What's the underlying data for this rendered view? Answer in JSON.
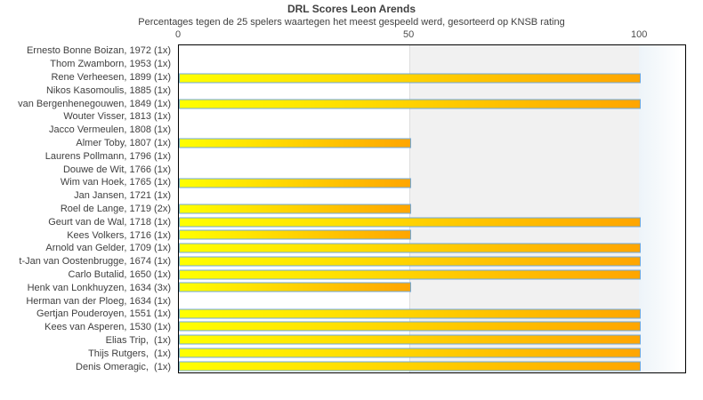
{
  "chart_data": {
    "type": "bar",
    "orientation": "horizontal",
    "title": "DRL Scores Leon Arends",
    "subtitle": "Percentages tegen de 25 spelers waartegen het meest gespeeld werd, gesorteerd op KNSB rating",
    "categories": [
      "Ernesto Bonne Boizan, 1972 (1x)",
      "Thom Zwamborn, 1953 (1x)",
      "Rene Verheesen, 1899 (1x)",
      "Nikos Kasomoulis, 1885 (1x)",
      "van Bergenhenegouwen, 1849 (1x)",
      "Wouter Visser, 1813 (1x)",
      "Jacco Vermeulen, 1808 (1x)",
      "Almer Toby, 1807 (1x)",
      "Laurens Pollmann, 1796 (1x)",
      "Douwe de Wit, 1766 (1x)",
      "Wim van Hoek, 1765 (1x)",
      "Jan Jansen, 1721 (1x)",
      "Roel de Lange, 1719 (2x)",
      "Geurt van de Wal, 1718 (1x)",
      "Kees Volkers, 1716 (1x)",
      "Arnold van Gelder, 1709 (1x)",
      "t-Jan van Oostenbrugge, 1674 (1x)",
      "Carlo Butalid, 1650 (1x)",
      "Henk van Lonkhuyzen, 1634 (3x)",
      "Herman van der Ploeg, 1634 (1x)",
      "Gertjan Pouderoyen, 1551 (1x)",
      "Kees van Asperen, 1530 (1x)",
      "Elias Trip,  (1x)",
      "Thijs Rutgers,  (1x)",
      "Denis Omeragic,  (1x)"
    ],
    "values": [
      0,
      0,
      100,
      0,
      100,
      0,
      0,
      50,
      0,
      0,
      50,
      0,
      50,
      100,
      50,
      100,
      100,
      100,
      50,
      0,
      100,
      100,
      100,
      100,
      100
    ],
    "xlabel": "",
    "ylabel": "",
    "xticks": [
      0,
      50,
      100
    ],
    "xlim": [
      0,
      110
    ],
    "grid": false,
    "legend_position": "none",
    "band_range": [
      50,
      100
    ],
    "colors": {
      "bar_gradient_start": "#ffff00",
      "bar_gradient_end": "#ffa500",
      "bar_border": "#6fa8dc",
      "midrange_band": "#f1f1f1",
      "overflow_zone_start": "#edf4f9",
      "plot_border": "#000000",
      "text": "#404040"
    }
  }
}
